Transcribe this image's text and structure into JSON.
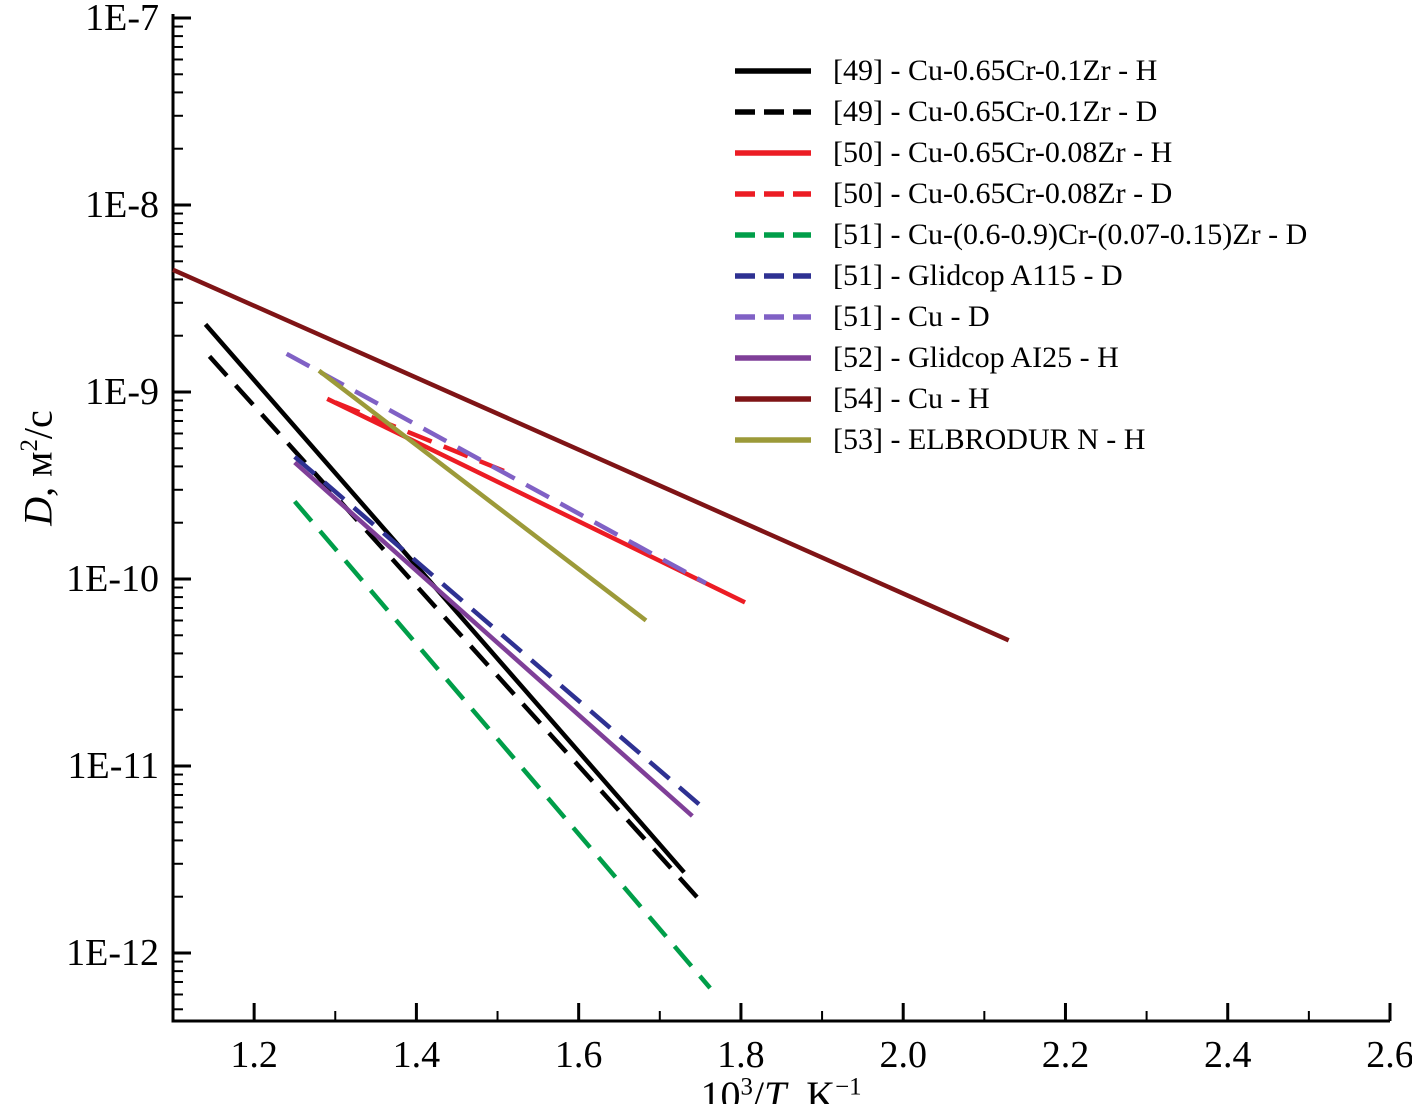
{
  "axes": {
    "y_title": {
      "italic": "D",
      "pre": ", м",
      "sup": "2",
      "post": "/с"
    },
    "x_title": {
      "base": "10",
      "exp": "3",
      "divider": "/",
      "variable": "T",
      "unit": ", K",
      "unit_exp": "−1"
    }
  },
  "chart_data": {
    "type": "line",
    "title": "",
    "xlabel": "10^3/T, K^-1",
    "ylabel": "D, м^2/с",
    "x_scale": "linear",
    "y_scale": "log",
    "grid": false,
    "legend_position": "top-right-inside",
    "xlim": [
      1.1,
      2.6
    ],
    "ylim": [
      4.3e-13,
      1e-07
    ],
    "x_ticks": [
      1.2,
      1.4,
      1.6,
      1.8,
      2.0,
      2.2,
      2.4,
      2.6
    ],
    "x_tick_labels": [
      "1.2",
      "1.4",
      "1.6",
      "1.8",
      "2.0",
      "2.2",
      "2.4",
      "2.6"
    ],
    "y_ticks": [
      1e-07,
      1e-08,
      1e-09,
      1e-10,
      1e-11,
      1e-12
    ],
    "y_tick_labels": [
      "1E-7",
      "1E-8",
      "1E-9",
      "1E-10",
      "1E-11",
      "1E-12"
    ],
    "series": [
      {
        "name": "[49] - Cu-0.65Cr-0.1Zr - H",
        "color": "#000000",
        "dash": "solid",
        "points": [
          [
            1.14,
            2.3e-09
          ],
          [
            1.73,
            2.7e-12
          ]
        ]
      },
      {
        "name": "[49] - Cu-0.65Cr-0.1Zr - D",
        "color": "#000000",
        "dash": "dashed",
        "points": [
          [
            1.145,
            1.55e-09
          ],
          [
            1.75,
            1.9e-12
          ]
        ]
      },
      {
        "name": "[50] - Cu-0.65Cr-0.08Zr - H",
        "color": "#ec1c24",
        "dash": "solid",
        "points": [
          [
            1.29,
            9.2e-10
          ],
          [
            1.805,
            7.5e-11
          ]
        ]
      },
      {
        "name": "[50] - Cu-0.65Cr-0.08Zr - D",
        "color": "#ec1c24",
        "dash": "dashed",
        "points": [
          [
            1.3,
            8.8e-10
          ],
          [
            1.52,
            3.6e-10
          ]
        ]
      },
      {
        "name": "[51] - Cu-(0.6-0.9)Cr-(0.07-0.15)Zr - D",
        "color": "#009e49",
        "dash": "dashed",
        "points": [
          [
            1.25,
            2.6e-10
          ],
          [
            1.762,
            6.5e-13
          ]
        ]
      },
      {
        "name": "[51] - Glidcop A115 - D",
        "color": "#2e3192",
        "dash": "dashed",
        "points": [
          [
            1.25,
            4.5e-10
          ],
          [
            1.757,
            5.8e-12
          ]
        ]
      },
      {
        "name": "[51] - Cu - D",
        "color": "#8061c5",
        "dash": "dashed",
        "points": [
          [
            1.24,
            1.6e-09
          ],
          [
            1.757,
            9.5e-11
          ]
        ]
      },
      {
        "name": "[52] - Glidcop AI25 - H",
        "color": "#7f3f98",
        "dash": "solid",
        "points": [
          [
            1.25,
            4.2e-10
          ],
          [
            1.74,
            5.4e-12
          ]
        ]
      },
      {
        "name": "[54] - Cu - H",
        "color": "#7f1416",
        "dash": "solid",
        "points": [
          [
            1.1,
            4.5e-09
          ],
          [
            2.13,
            4.7e-11
          ]
        ]
      },
      {
        "name": "[53] - ELBRODUR N - H",
        "color": "#9c9a39",
        "dash": "solid",
        "points": [
          [
            1.28,
            1.3e-09
          ],
          [
            1.683,
            6e-11
          ]
        ]
      }
    ]
  }
}
